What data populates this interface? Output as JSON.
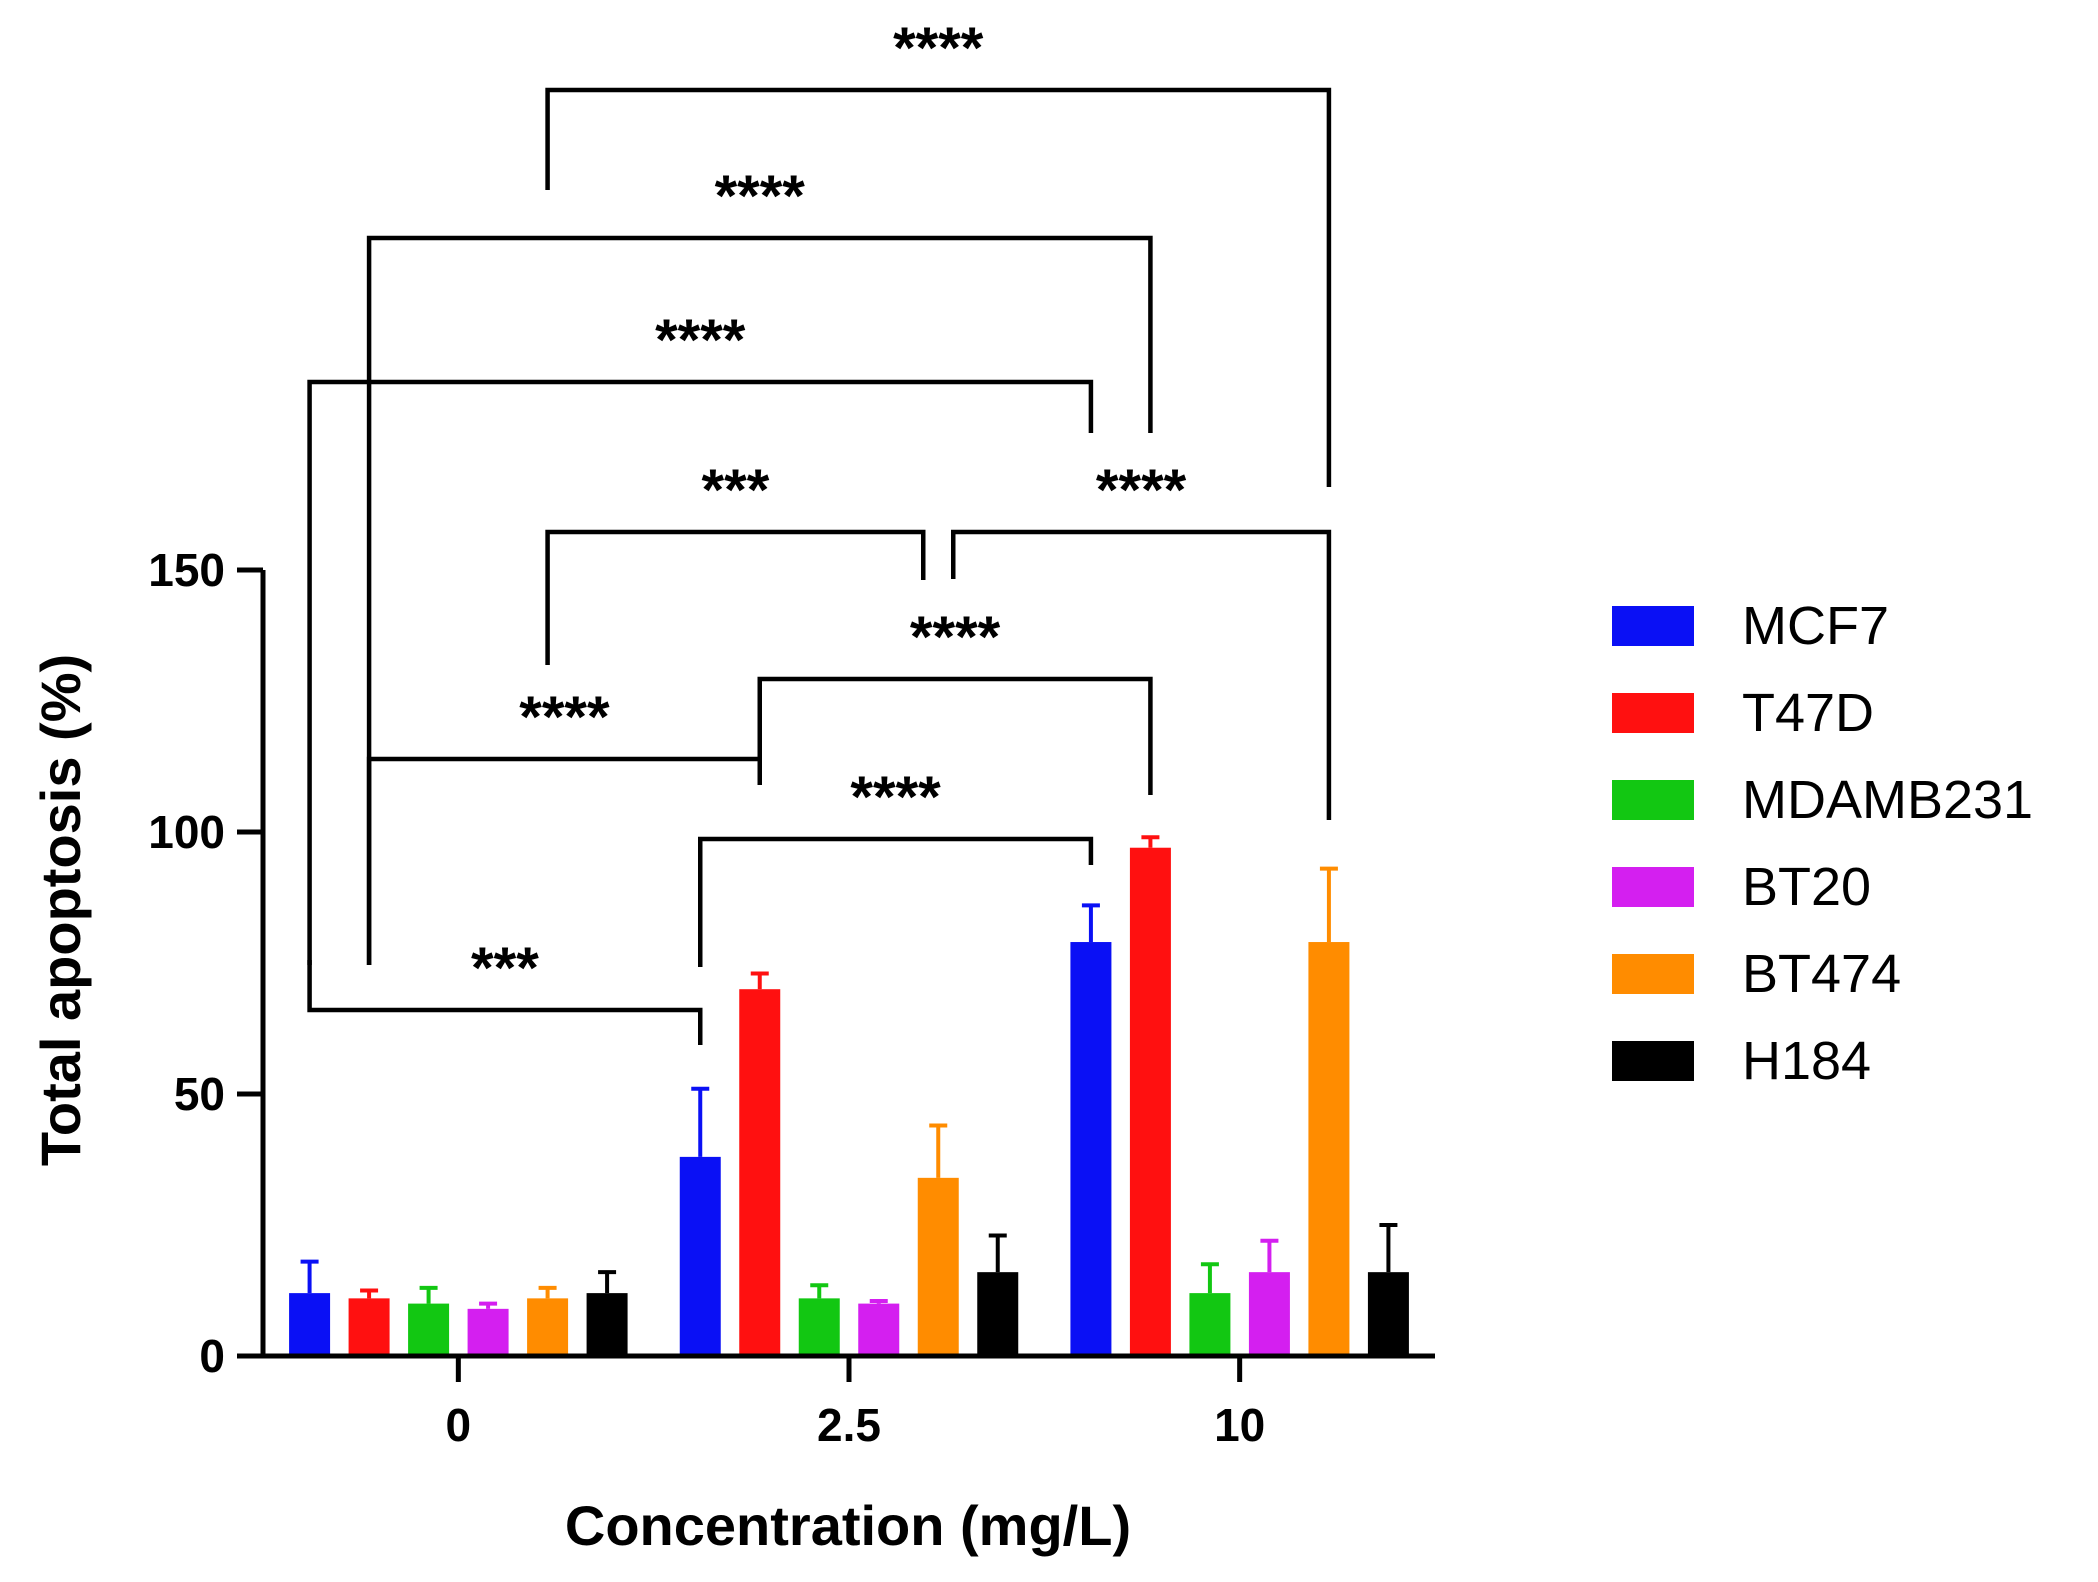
{
  "chart_data": {
    "type": "bar",
    "title": "",
    "xlabel": "Concentration (mg/L)",
    "ylabel": "Total apoptosis (%)",
    "ylim": [
      0,
      150
    ],
    "yticks": [
      0,
      50,
      100,
      150
    ],
    "categories": [
      "0",
      "2.5",
      "10"
    ],
    "series": [
      {
        "name": "MCF7",
        "color": "#0a10f5",
        "values": [
          12,
          38,
          79
        ],
        "errors": [
          6,
          13,
          7
        ]
      },
      {
        "name": "T47D",
        "color": "#ff1010",
        "values": [
          11,
          70,
          97
        ],
        "errors": [
          1.5,
          3,
          2
        ]
      },
      {
        "name": "MDAMB231",
        "color": "#12c712",
        "values": [
          10,
          11,
          12
        ],
        "errors": [
          3,
          2.5,
          5.5
        ]
      },
      {
        "name": "BT20",
        "color": "#d41ff0",
        "values": [
          9,
          10,
          16
        ],
        "errors": [
          1,
          0.5,
          6
        ]
      },
      {
        "name": "BT474",
        "color": "#ff8c00",
        "values": [
          11,
          34,
          79
        ],
        "errors": [
          2,
          10,
          14
        ]
      },
      {
        "name": "H184",
        "color": "#000000",
        "values": [
          12,
          16,
          16
        ],
        "errors": [
          4,
          7,
          9
        ]
      }
    ],
    "legend_position": "right",
    "significance": [
      {
        "from_group": 0,
        "from_series": 0,
        "to_group": 1,
        "to_series": 0,
        "label": "***"
      },
      {
        "from_group": 1,
        "from_series": 0,
        "to_group": 2,
        "to_series": 0,
        "label": "****"
      },
      {
        "from_group": 0,
        "from_series": 1,
        "to_group": 1,
        "to_series": 1,
        "label": "****"
      },
      {
        "from_group": 1,
        "from_series": 1,
        "to_group": 2,
        "to_series": 1,
        "label": "****"
      },
      {
        "from_group": 0,
        "from_series": 4,
        "to_group": 1,
        "to_series": 4,
        "label": "***"
      },
      {
        "from_group": 1,
        "from_series": 4,
        "to_group": 2,
        "to_series": 4,
        "label": "****"
      },
      {
        "from_group": 0,
        "from_series": 0,
        "to_group": 2,
        "to_series": 0,
        "label": "****"
      },
      {
        "from_group": 0,
        "from_series": 1,
        "to_group": 2,
        "to_series": 1,
        "label": "****"
      },
      {
        "from_group": 0,
        "from_series": 4,
        "to_group": 2,
        "to_series": 4,
        "label": "****"
      }
    ]
  }
}
